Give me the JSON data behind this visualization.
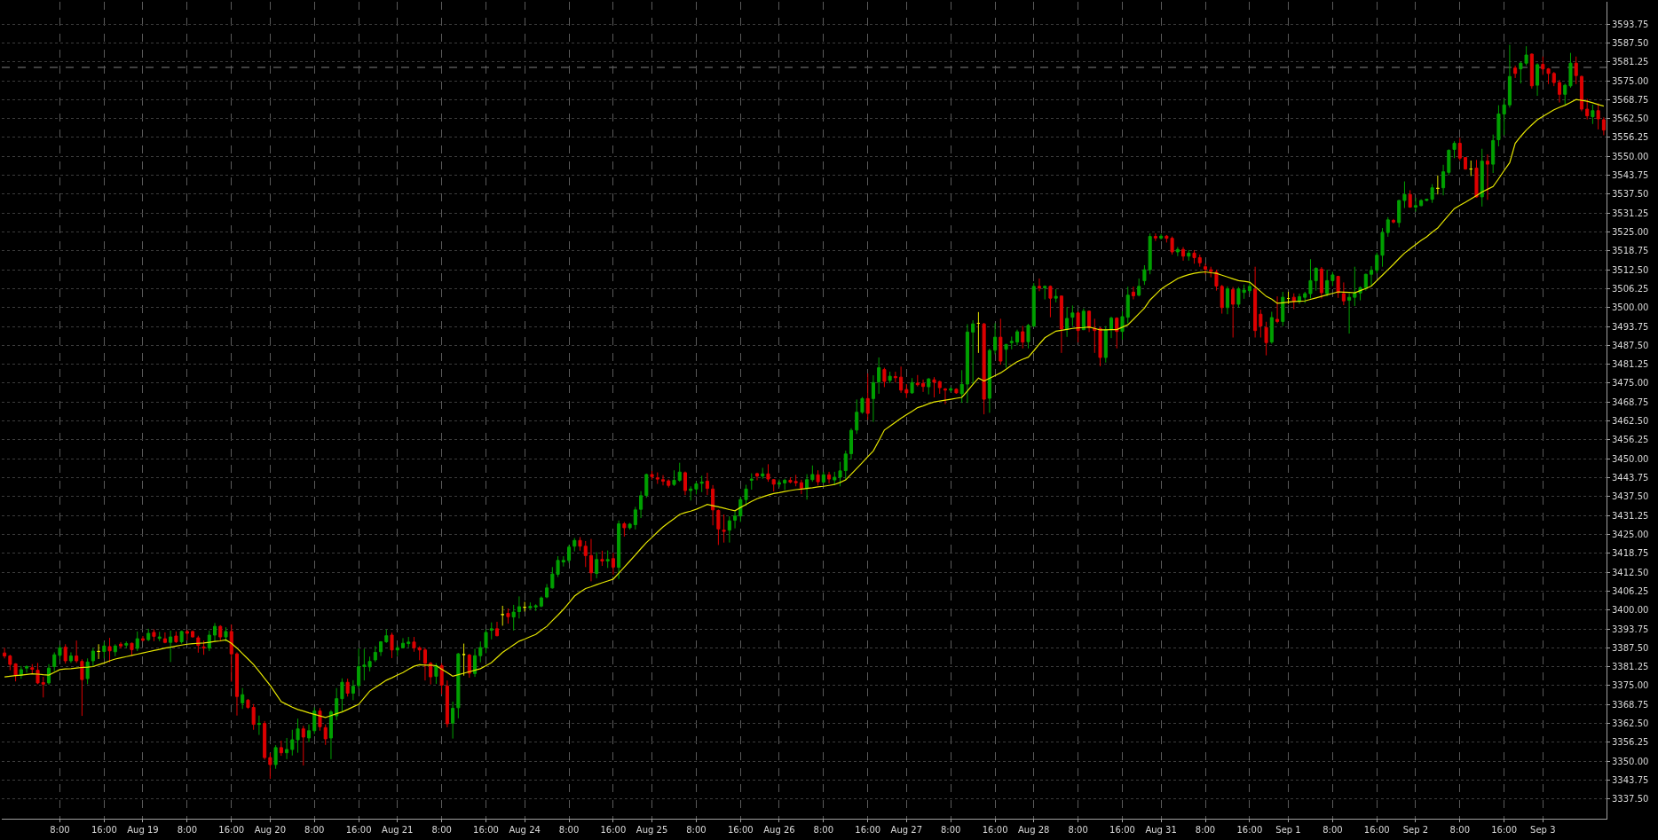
{
  "chart_data": {
    "type": "candlestick",
    "categories": [
      null,
      null,
      null,
      null,
      null,
      null,
      null,
      null,
      null,
      null,
      "8:00",
      null,
      null,
      null,
      null,
      null,
      null,
      null,
      "16:00",
      null,
      null,
      null,
      null,
      null,
      null,
      "Aug 19",
      null,
      null,
      null,
      null,
      null,
      null,
      null,
      "8:00",
      null,
      null,
      null,
      null,
      null,
      null,
      null,
      "16:00",
      null,
      null,
      null,
      null,
      null,
      null,
      "Aug 20",
      null,
      null,
      null,
      null,
      null,
      null,
      null,
      "8:00",
      null,
      null,
      null,
      null,
      null,
      null,
      null,
      "16:00",
      null,
      null,
      null,
      null,
      null,
      null,
      "Aug 21",
      null,
      null,
      null,
      null,
      null,
      null,
      null,
      "8:00",
      null,
      null,
      null,
      null,
      null,
      null,
      null,
      "16:00",
      null,
      null,
      null,
      null,
      null,
      null,
      "Aug 24",
      null,
      null,
      null,
      null,
      null,
      null,
      null,
      "8:00",
      null,
      null,
      null,
      null,
      null,
      null,
      null,
      "16:00",
      null,
      null,
      null,
      null,
      null,
      null,
      "Aug 25",
      null,
      null,
      null,
      null,
      null,
      null,
      null,
      "8:00",
      null,
      null,
      null,
      null,
      null,
      null,
      null,
      "16:00",
      null,
      null,
      null,
      null,
      null,
      null,
      "Aug 26",
      null,
      null,
      null,
      null,
      null,
      null,
      null,
      "8:00",
      null,
      null,
      null,
      null,
      null,
      null,
      null,
      "16:00",
      null,
      null,
      null,
      null,
      null,
      null,
      "Aug 27",
      null,
      null,
      null,
      null,
      null,
      null,
      null,
      "8:00",
      null,
      null,
      null,
      null,
      null,
      null,
      null,
      "16:00",
      null,
      null,
      null,
      null,
      null,
      null,
      "Aug 28",
      null,
      null,
      null,
      null,
      null,
      null,
      null,
      "8:00",
      null,
      null,
      null,
      null,
      null,
      null,
      null,
      "16:00",
      null,
      null,
      null,
      null,
      null,
      null,
      "Aug 31",
      null,
      null,
      null,
      null,
      null,
      null,
      null,
      "8:00",
      null,
      null,
      null,
      null,
      null,
      null,
      null,
      "16:00",
      null,
      null,
      null,
      null,
      null,
      null,
      "Sep 1",
      null,
      null,
      null,
      null,
      null,
      null,
      null,
      "8:00",
      null,
      null,
      null,
      null,
      null,
      null,
      null,
      "16:00",
      null,
      null,
      null,
      null,
      null,
      null,
      "Sep 2",
      null,
      null,
      null,
      null,
      null,
      null,
      null,
      "8:00",
      null,
      null,
      null,
      null,
      null,
      null,
      null,
      "16:00",
      null,
      null,
      null,
      null,
      null,
      null,
      "Sep 3",
      null,
      null,
      null,
      null,
      null,
      null,
      null,
      null,
      null,
      null,
      null
    ],
    "ohlc": [
      [
        3385.8,
        3387.5,
        3384.0,
        3384.8
      ],
      [
        3384.8,
        3385.2,
        3380.1,
        3382.0
      ],
      [
        3382.2,
        3382.4,
        3376.4,
        3378.4
      ],
      [
        3378.4,
        3381.5,
        3377.3,
        3380.3
      ],
      [
        3380.8,
        3381.7,
        3379.3,
        3381.3
      ],
      [
        3380.9,
        3382.1,
        3378.9,
        3380.4
      ],
      [
        3380.1,
        3382.5,
        3375.5,
        3375.9
      ],
      [
        3376.0,
        3377.9,
        3371.1,
        3375.5
      ],
      [
        3375.9,
        3382.1,
        3375.3,
        3380.8
      ],
      [
        3381.3,
        3386.0,
        3379.8,
        3385.2
      ],
      [
        3385.0,
        3388.4,
        3383.7,
        3387.5
      ],
      [
        3387.7,
        3388.7,
        3382.3,
        3383.2
      ],
      [
        3383.2,
        3386.0,
        3382.5,
        3384.8
      ],
      [
        3384.8,
        3389.9,
        3382.5,
        3383.2
      ],
      [
        3383.0,
        3383.7,
        3365.0,
        3377.0
      ],
      [
        3377.3,
        3384.0,
        3375.5,
        3382.8
      ],
      [
        3383.2,
        3387.5,
        3381.4,
        3386.4
      ],
      [
        3386.3,
        3388.7,
        3383.8,
        3386.3
      ],
      [
        3386.3,
        3389.4,
        3384.0,
        3388.1
      ],
      [
        3387.9,
        3390.8,
        3382.7,
        3386.5
      ],
      [
        3386.2,
        3388.7,
        3384.7,
        3388.1
      ],
      [
        3388.7,
        3389.4,
        3387.3,
        3388.1
      ],
      [
        3388.4,
        3389.6,
        3387.4,
        3388.9
      ],
      [
        3389.0,
        3389.2,
        3384.8,
        3386.9
      ],
      [
        3387.3,
        3392.9,
        3386.4,
        3390.5
      ],
      [
        3390.5,
        3391.4,
        3389.6,
        3390.0
      ],
      [
        3390.2,
        3393.8,
        3389.7,
        3392.3
      ],
      [
        3392.6,
        3393.6,
        3389.7,
        3391.3
      ],
      [
        3390.6,
        3392.8,
        3389.7,
        3391.1
      ],
      [
        3390.5,
        3392.6,
        3389.0,
        3389.3
      ],
      [
        3389.3,
        3393.2,
        3382.8,
        3391.1
      ],
      [
        3391.4,
        3392.9,
        3389.1,
        3389.5
      ],
      [
        3389.5,
        3393.2,
        3388.9,
        3392.9
      ],
      [
        3392.9,
        3393.4,
        3390.0,
        3392.3
      ],
      [
        3392.9,
        3393.2,
        3390.9,
        3391.1
      ],
      [
        3390.8,
        3391.5,
        3385.9,
        3388.3
      ],
      [
        3387.8,
        3389.9,
        3385.2,
        3387.4
      ],
      [
        3387.4,
        3393.2,
        3386.4,
        3391.7
      ],
      [
        3391.7,
        3395.7,
        3389.4,
        3394.6
      ],
      [
        3394.6,
        3395.0,
        3389.6,
        3391.1
      ],
      [
        3391.1,
        3394.3,
        3389.6,
        3392.9
      ],
      [
        3392.9,
        3395.2,
        3376.3,
        3385.5
      ],
      [
        3385.5,
        3386.0,
        3365.1,
        3371.4
      ],
      [
        3369.3,
        3374.2,
        3367.3,
        3372.0
      ],
      [
        3370.2,
        3370.6,
        3367.3,
        3367.8
      ],
      [
        3367.8,
        3368.9,
        3360.4,
        3362.2
      ],
      [
        3362.2,
        3365.1,
        3358.7,
        3362.5
      ],
      [
        3362.5,
        3363.3,
        3350.5,
        3351.2
      ],
      [
        3351.2,
        3352.7,
        3344.2,
        3348.9
      ],
      [
        3348.9,
        3355.3,
        3347.5,
        3354.5
      ],
      [
        3354.5,
        3356.8,
        3351.8,
        3352.8
      ],
      [
        3352.8,
        3357.7,
        3350.7,
        3353.9
      ],
      [
        3353.9,
        3360.4,
        3351.9,
        3357.1
      ],
      [
        3357.1,
        3364.1,
        3352.8,
        3360.7
      ],
      [
        3360.7,
        3361.7,
        3348.6,
        3358.0
      ],
      [
        3357.7,
        3362.2,
        3356.3,
        3360.1
      ],
      [
        3360.1,
        3367.8,
        3359.0,
        3366.6
      ],
      [
        3366.6,
        3367.6,
        3360.1,
        3361.4
      ],
      [
        3361.1,
        3362.2,
        3355.4,
        3357.4
      ],
      [
        3357.7,
        3366.9,
        3350.7,
        3366.3
      ],
      [
        3365.0,
        3374.2,
        3363.6,
        3370.7
      ],
      [
        3370.7,
        3377.4,
        3366.3,
        3376.1
      ],
      [
        3376.1,
        3377.3,
        3371.4,
        3372.5
      ],
      [
        3372.5,
        3376.8,
        3370.2,
        3374.8
      ],
      [
        3375.0,
        3387.3,
        3374.0,
        3381.3
      ],
      [
        3381.3,
        3387.2,
        3376.7,
        3381.8
      ],
      [
        3381.2,
        3384.6,
        3379.7,
        3383.0
      ],
      [
        3383.5,
        3388.1,
        3382.8,
        3386.0
      ],
      [
        3386.2,
        3389.7,
        3384.8,
        3389.5
      ],
      [
        3389.5,
        3393.6,
        3389.1,
        3391.5
      ],
      [
        3391.7,
        3392.5,
        3384.1,
        3386.8
      ],
      [
        3386.8,
        3388.3,
        3384.8,
        3387.5
      ],
      [
        3387.5,
        3390.7,
        3387.3,
        3389.0
      ],
      [
        3388.9,
        3391.1,
        3387.7,
        3389.4
      ],
      [
        3389.4,
        3391.1,
        3386.2,
        3387.5
      ],
      [
        3387.5,
        3388.0,
        3383.4,
        3386.8
      ],
      [
        3386.8,
        3387.5,
        3376.7,
        3382.4
      ],
      [
        3382.4,
        3382.8,
        3375.4,
        3377.9
      ],
      [
        3378.1,
        3382.4,
        3375.6,
        3381.6
      ],
      [
        3381.6,
        3382.4,
        3372.2,
        3375.2
      ],
      [
        3374.9,
        3376.7,
        3361.2,
        3362.4
      ],
      [
        3362.6,
        3369.7,
        3357.5,
        3367.5
      ],
      [
        3367.7,
        3385.8,
        3364.2,
        3385.5
      ],
      [
        3385.3,
        3388.9,
        3378.3,
        3385.3
      ],
      [
        3385.1,
        3385.5,
        3377.6,
        3379.1
      ],
      [
        3379.0,
        3387.2,
        3377.9,
        3384.9
      ],
      [
        3384.9,
        3389.6,
        3382.7,
        3387.6
      ],
      [
        3387.6,
        3393.6,
        3385.7,
        3392.6
      ],
      [
        3393.3,
        3395.9,
        3390.3,
        3393.8
      ],
      [
        3393.8,
        3396.1,
        3391.3,
        3391.5
      ],
      [
        3398.5,
        3401.4,
        3394.8,
        3398.5
      ],
      [
        3398.9,
        3400.5,
        3395.5,
        3397.8
      ],
      [
        3397.7,
        3401.7,
        3393.2,
        3399.3
      ],
      [
        3399.5,
        3404.5,
        3397.2,
        3401.1
      ],
      [
        3400.9,
        3402.7,
        3399.5,
        3400.9
      ],
      [
        3400.7,
        3402.5,
        3400.3,
        3401.2
      ],
      [
        3401.0,
        3401.9,
        3399.7,
        3401.4
      ],
      [
        3401.3,
        3404.5,
        3400.9,
        3404.0
      ],
      [
        3404.3,
        3408.6,
        3403.9,
        3407.3
      ],
      [
        3407.3,
        3414.2,
        3407.1,
        3411.9
      ],
      [
        3411.8,
        3417.8,
        3410.9,
        3416.4
      ],
      [
        3415.9,
        3417.8,
        3414.4,
        3416.4
      ],
      [
        3416.4,
        3421.5,
        3415.6,
        3420.8
      ],
      [
        3421.1,
        3423.8,
        3419.4,
        3423.0
      ],
      [
        3423.0,
        3424.1,
        3419.6,
        3421.1
      ],
      [
        3421.1,
        3422.8,
        3414.2,
        3418.0
      ],
      [
        3418.0,
        3423.5,
        3409.5,
        3412.3
      ],
      [
        3412.1,
        3419.1,
        3410.5,
        3416.7
      ],
      [
        3416.7,
        3419.6,
        3414.6,
        3416.2
      ],
      [
        3416.2,
        3419.7,
        3413.9,
        3416.7
      ],
      [
        3417.0,
        3418.9,
        3411.7,
        3414.2
      ],
      [
        3414.1,
        3429.6,
        3410.3,
        3428.5
      ],
      [
        3428.5,
        3429.1,
        3424.3,
        3427.2
      ],
      [
        3427.2,
        3428.8,
        3426.6,
        3428.4
      ],
      [
        3428.2,
        3434.1,
        3426.6,
        3433.1
      ],
      [
        3433.3,
        3439.3,
        3430.4,
        3437.8
      ],
      [
        3437.9,
        3445.1,
        3437.1,
        3444.8
      ],
      [
        3444.8,
        3446.0,
        3443.1,
        3444.1
      ],
      [
        3443.7,
        3445.5,
        3441.7,
        3443.3
      ],
      [
        3443.1,
        3444.6,
        3441.2,
        3442.6
      ],
      [
        3442.7,
        3443.2,
        3440.5,
        3441.2
      ],
      [
        3441.5,
        3446.2,
        3441.0,
        3442.9
      ],
      [
        3442.9,
        3448.7,
        3442.4,
        3445.6
      ],
      [
        3445.4,
        3445.8,
        3438.0,
        3439.5
      ],
      [
        3439.5,
        3440.9,
        3436.2,
        3440.0
      ],
      [
        3440.0,
        3442.5,
        3438.2,
        3441.7
      ],
      [
        3441.9,
        3444.4,
        3439.0,
        3442.3
      ],
      [
        3442.6,
        3445.4,
        3438.0,
        3440.2
      ],
      [
        3440.0,
        3441.3,
        3428.0,
        3433.1
      ],
      [
        3432.9,
        3433.2,
        3421.5,
        3426.8
      ],
      [
        3426.4,
        3431.6,
        3422.3,
        3426.0
      ],
      [
        3426.4,
        3431.0,
        3422.3,
        3429.5
      ],
      [
        3429.7,
        3432.6,
        3427.0,
        3431.1
      ],
      [
        3431.1,
        3437.5,
        3429.1,
        3436.5
      ],
      [
        3436.5,
        3441.4,
        3434.4,
        3440.0
      ],
      [
        3442.9,
        3445.2,
        3439.8,
        3443.3
      ],
      [
        3445.1,
        3445.4,
        3442.9,
        3444.3
      ],
      [
        3444.3,
        3447.0,
        3443.4,
        3445.0
      ],
      [
        3445.0,
        3448.2,
        3442.4,
        3443.3
      ],
      [
        3443.1,
        3443.3,
        3439.2,
        3441.6
      ],
      [
        3441.6,
        3443.2,
        3440.6,
        3442.1
      ],
      [
        3442.0,
        3443.4,
        3439.7,
        3442.9
      ],
      [
        3442.9,
        3443.9,
        3441.9,
        3442.3
      ],
      [
        3442.5,
        3444.7,
        3440.9,
        3442.1
      ],
      [
        3442.1,
        3443.1,
        3438.3,
        3440.3
      ],
      [
        3440.2,
        3444.9,
        3436.5,
        3443.1
      ],
      [
        3443.1,
        3447.8,
        3442.4,
        3444.8
      ],
      [
        3444.7,
        3446.2,
        3441.2,
        3442.4
      ],
      [
        3442.3,
        3445.7,
        3441.9,
        3444.7
      ],
      [
        3444.7,
        3445.7,
        3441.9,
        3443.3
      ],
      [
        3443.0,
        3445.7,
        3441.3,
        3443.9
      ],
      [
        3443.9,
        3449.0,
        3440.9,
        3446.0
      ],
      [
        3446.1,
        3452.7,
        3443.1,
        3451.6
      ],
      [
        3451.7,
        3460.1,
        3449.8,
        3459.4
      ],
      [
        3459.5,
        3469.6,
        3458.2,
        3465.4
      ],
      [
        3465.4,
        3470.4,
        3464.9,
        3469.9
      ],
      [
        3469.9,
        3478.2,
        3462.9,
        3465.0
      ],
      [
        3469.9,
        3477.6,
        3462.2,
        3475.2
      ],
      [
        3475.4,
        3483.5,
        3471.5,
        3480.1
      ],
      [
        3479.5,
        3480.1,
        3473.7,
        3475.6
      ],
      [
        3475.9,
        3478.8,
        3475.0,
        3477.3
      ],
      [
        3477.2,
        3478.8,
        3475.2,
        3476.8
      ],
      [
        3477.0,
        3480.5,
        3471.8,
        3472.7
      ],
      [
        3472.9,
        3474.7,
        3470.1,
        3471.8
      ],
      [
        3471.8,
        3476.7,
        3471.5,
        3475.2
      ],
      [
        3475.0,
        3477.7,
        3473.9,
        3474.5
      ],
      [
        3474.9,
        3476.2,
        3472.1,
        3473.9
      ],
      [
        3473.8,
        3476.7,
        3471.3,
        3476.4
      ],
      [
        3476.1,
        3477.0,
        3470.3,
        3475.3
      ],
      [
        3475.5,
        3475.8,
        3471.5,
        3473.5
      ],
      [
        3473.1,
        3473.4,
        3468.1,
        3472.7
      ],
      [
        3472.7,
        3473.7,
        3472.0,
        3473.1
      ],
      [
        3473.0,
        3473.3,
        3471.5,
        3471.8
      ],
      [
        3471.5,
        3479.3,
        3468.5,
        3474.6
      ],
      [
        3474.7,
        3494.5,
        3468.5,
        3491.9
      ],
      [
        3491.9,
        3495.8,
        3474.7,
        3494.6
      ],
      [
        3494.8,
        3498.5,
        3485.0,
        3494.8
      ],
      [
        3494.6,
        3494.9,
        3464.7,
        3469.7
      ],
      [
        3470.0,
        3486.4,
        3465.2,
        3485.8
      ],
      [
        3485.9,
        3494.8,
        3484.5,
        3490.2
      ],
      [
        3490.2,
        3496.3,
        3481.1,
        3482.3
      ],
      [
        3486.2,
        3488.0,
        3480.1,
        3487.8
      ],
      [
        3488.4,
        3490.4,
        3486.2,
        3488.8
      ],
      [
        3488.6,
        3492.7,
        3487.5,
        3492.0
      ],
      [
        3492.0,
        3493.9,
        3486.5,
        3488.6
      ],
      [
        3488.7,
        3494.6,
        3486.5,
        3494.1
      ],
      [
        3493.9,
        3508.1,
        3493.5,
        3507.0
      ],
      [
        3507.0,
        3509.6,
        3505.4,
        3506.5
      ],
      [
        3506.5,
        3507.3,
        3502.7,
        3507.0
      ],
      [
        3507.0,
        3507.3,
        3496.8,
        3503.1
      ],
      [
        3503.1,
        3506.1,
        3501.7,
        3503.7
      ],
      [
        3503.8,
        3504.0,
        3485.0,
        3492.9
      ],
      [
        3492.9,
        3500.2,
        3490.3,
        3496.4
      ],
      [
        3496.8,
        3500.7,
        3493.9,
        3498.2
      ],
      [
        3498.2,
        3498.8,
        3488.5,
        3492.4
      ],
      [
        3492.7,
        3499.7,
        3492.5,
        3498.8
      ],
      [
        3498.8,
        3499.0,
        3491.9,
        3493.4
      ],
      [
        3493.1,
        3496.3,
        3485.0,
        3492.4
      ],
      [
        3493.1,
        3493.5,
        3480.6,
        3483.5
      ],
      [
        3483.5,
        3493.9,
        3481.8,
        3492.7
      ],
      [
        3492.7,
        3497.0,
        3489.9,
        3496.5
      ],
      [
        3496.5,
        3496.8,
        3486.5,
        3492.1
      ],
      [
        3492.1,
        3498.8,
        3489.4,
        3497.0
      ],
      [
        3496.8,
        3506.9,
        3494.8,
        3504.1
      ],
      [
        3505.1,
        3506.9,
        3502.7,
        3503.9
      ],
      [
        3504.1,
        3509.6,
        3503.7,
        3507.0
      ],
      [
        3508.9,
        3514.0,
        3507.5,
        3512.5
      ],
      [
        3512.5,
        3524.5,
        3511.0,
        3523.5
      ],
      [
        3523.5,
        3524.5,
        3522.0,
        3523.0
      ],
      [
        3523.0,
        3524.3,
        3522.5,
        3523.6
      ],
      [
        3523.6,
        3524.0,
        3521.5,
        3522.9
      ],
      [
        3522.9,
        3523.5,
        3517.5,
        3518.4
      ],
      [
        3518.4,
        3520.0,
        3517.0,
        3519.2
      ],
      [
        3519.2,
        3520.0,
        3515.5,
        3517.0
      ],
      [
        3517.0,
        3519.0,
        3515.5,
        3518.0
      ],
      [
        3518.0,
        3519.0,
        3514.5,
        3516.5
      ],
      [
        3516.5,
        3517.5,
        3513.5,
        3514.8
      ],
      [
        3513.5,
        3514.5,
        3511.0,
        3512.7
      ],
      [
        3512.5,
        3513.5,
        3510.0,
        3511.9
      ],
      [
        3511.7,
        3512.5,
        3505.6,
        3507.1
      ],
      [
        3507.0,
        3507.5,
        3498.0,
        3500.0
      ],
      [
        3500.0,
        3507.0,
        3497.8,
        3506.2
      ],
      [
        3505.9,
        3506.8,
        3490.1,
        3501.1
      ],
      [
        3501.1,
        3506.8,
        3500.1,
        3506.2
      ],
      [
        3505.0,
        3507.6,
        3502.9,
        3505.8
      ],
      [
        3505.6,
        3508.6,
        3504.7,
        3507.0
      ],
      [
        3506.0,
        3513.5,
        3490.1,
        3492.4
      ],
      [
        3497.8,
        3499.3,
        3490.1,
        3493.9
      ],
      [
        3493.4,
        3495.3,
        3484.2,
        3488.4
      ],
      [
        3488.6,
        3498.6,
        3488.0,
        3496.7
      ],
      [
        3496.1,
        3503.7,
        3494.8,
        3495.4
      ],
      [
        3495.4,
        3505.2,
        3493.9,
        3503.4
      ],
      [
        3503.0,
        3505.2,
        3501.2,
        3503.0
      ],
      [
        3503.4,
        3504.7,
        3499.5,
        3502.0
      ],
      [
        3502.0,
        3504.6,
        3501.2,
        3503.6
      ],
      [
        3503.4,
        3505.2,
        3501.5,
        3504.6
      ],
      [
        3504.6,
        3516.0,
        3503.0,
        3508.9
      ],
      [
        3508.9,
        3513.3,
        3505.6,
        3513.0
      ],
      [
        3512.7,
        3513.4,
        3503.0,
        3504.9
      ],
      [
        3504.6,
        3512.5,
        3503.7,
        3508.9
      ],
      [
        3508.9,
        3511.8,
        3507.1,
        3510.8
      ],
      [
        3510.3,
        3510.5,
        3503.2,
        3504.9
      ],
      [
        3504.6,
        3508.3,
        3500.8,
        3502.2
      ],
      [
        3502.4,
        3504.7,
        3491.4,
        3503.4
      ],
      [
        3503.4,
        3513.5,
        3500.5,
        3504.8
      ],
      [
        3504.8,
        3507.0,
        3502.4,
        3506.6
      ],
      [
        3506.6,
        3511.2,
        3505.6,
        3511.0
      ],
      [
        3511.0,
        3513.7,
        3507.1,
        3512.3
      ],
      [
        3512.3,
        3518.2,
        3511.3,
        3517.3
      ],
      [
        3517.3,
        3526.3,
        3513.5,
        3524.8
      ],
      [
        3524.8,
        3529.9,
        3523.4,
        3529.0
      ],
      [
        3528.8,
        3529.3,
        3527.8,
        3528.3
      ],
      [
        3528.1,
        3535.6,
        3526.5,
        3535.4
      ],
      [
        3535.4,
        3541.7,
        3532.9,
        3537.4
      ],
      [
        3537.4,
        3538.8,
        3533.0,
        3533.2
      ],
      [
        3533.2,
        3536.3,
        3531.7,
        3533.7
      ],
      [
        3533.7,
        3535.8,
        3533.5,
        3535.4
      ],
      [
        3535.4,
        3536.0,
        3535.2,
        3535.8
      ],
      [
        3535.8,
        3540.8,
        3534.6,
        3539.6
      ],
      [
        3539.4,
        3543.7,
        3537.4,
        3539.4
      ],
      [
        3539.6,
        3547.2,
        3537.1,
        3544.9
      ],
      [
        3544.7,
        3552.3,
        3543.7,
        3552.0
      ],
      [
        3552.3,
        3555.0,
        3549.4,
        3554.3
      ],
      [
        3554.3,
        3556.1,
        3548.6,
        3549.4
      ],
      [
        3549.6,
        3549.8,
        3545.6,
        3545.8
      ],
      [
        3545.8,
        3548.6,
        3543.5,
        3545.8
      ],
      [
        3546.1,
        3548.8,
        3536.4,
        3536.6
      ],
      [
        3536.6,
        3552.5,
        3533.4,
        3548.4
      ],
      [
        3548.4,
        3550.6,
        3535.6,
        3547.4
      ],
      [
        3547.4,
        3557.2,
        3544.5,
        3555.2
      ],
      [
        3555.5,
        3566.9,
        3553.3,
        3564.0
      ],
      [
        3564.0,
        3569.0,
        3557.0,
        3567.0
      ],
      [
        3567.0,
        3586.9,
        3566.1,
        3576.4
      ],
      [
        3579.2,
        3580.0,
        3575.9,
        3577.4
      ],
      [
        3578.9,
        3581.3,
        3574.1,
        3580.8
      ],
      [
        3580.8,
        3586.4,
        3580.0,
        3583.5
      ],
      [
        3583.8,
        3584.0,
        3572.4,
        3573.3
      ],
      [
        3573.5,
        3580.8,
        3570.0,
        3580.3
      ],
      [
        3580.4,
        3583.0,
        3576.9,
        3578.9
      ],
      [
        3578.9,
        3579.2,
        3573.9,
        3577.4
      ],
      [
        3577.4,
        3577.9,
        3573.2,
        3574.4
      ],
      [
        3574.4,
        3575.3,
        3567.8,
        3570.5
      ],
      [
        3570.5,
        3574.0,
        3567.1,
        3573.5
      ],
      [
        3573.3,
        3584.2,
        3572.7,
        3580.8
      ],
      [
        3580.8,
        3583.0,
        3573.9,
        3576.7
      ],
      [
        3576.4,
        3576.7,
        3564.9,
        3565.6
      ],
      [
        3565.6,
        3569.0,
        3562.2,
        3563.4
      ],
      [
        3563.1,
        3567.1,
        3560.7,
        3565.1
      ],
      [
        3565.1,
        3567.5,
        3558.9,
        3562.4
      ],
      [
        3562.1,
        3562.9,
        3557.0,
        3558.7
      ]
    ],
    "colors": [
      "#dd0000",
      "#dd0000",
      "#dd0000",
      "#00a000",
      "#00a000",
      "#dd0000",
      "#dd0000",
      "#dd0000",
      "#00a000",
      "#00a000",
      "#00a000",
      "#dd0000",
      "#00a000",
      "#dd0000",
      "#dd0000",
      "#00a000",
      "#00a000",
      "#e6e600",
      "#00a000",
      "#dd0000",
      "#00a000",
      "#dd0000",
      "#00a000",
      "#dd0000",
      "#00a000",
      "#dd0000",
      "#00a000",
      "#dd0000",
      "#00a000",
      "#dd0000",
      "#00a000",
      "#dd0000",
      "#00a000",
      "#dd0000",
      "#dd0000",
      "#dd0000",
      "#dd0000",
      "#00a000",
      "#00a000",
      "#dd0000",
      "#00a000",
      "#dd0000",
      "#dd0000",
      "#00a000",
      "#dd0000",
      "#dd0000",
      "#00a000",
      "#dd0000",
      "#dd0000",
      "#00a000",
      "#dd0000",
      "#00a000",
      "#00a000",
      "#00a000",
      "#dd0000",
      "#00a000",
      "#00a000",
      "#dd0000",
      "#dd0000",
      "#00a000",
      "#00a000",
      "#00a000",
      "#dd0000",
      "#00a000",
      "#00a000",
      "#00a000",
      "#00a000",
      "#00a000",
      "#00a000",
      "#00a000",
      "#dd0000",
      "#00a000",
      "#00a000",
      "#00a000",
      "#dd0000",
      "#dd0000",
      "#dd0000",
      "#dd0000",
      "#00a000",
      "#dd0000",
      "#dd0000",
      "#00a000",
      "#00a000",
      "#e6e600",
      "#dd0000",
      "#00a000",
      "#00a000",
      "#00a000",
      "#00a000",
      "#dd0000",
      "#e6e600",
      "#dd0000",
      "#00a000",
      "#00a000",
      "#e6e600",
      "#00a000",
      "#00a000",
      "#00a000",
      "#00a000",
      "#00a000",
      "#00a000",
      "#00a000",
      "#00a000",
      "#00a000",
      "#dd0000",
      "#dd0000",
      "#dd0000",
      "#00a000",
      "#dd0000",
      "#00a000",
      "#dd0000",
      "#00a000",
      "#dd0000",
      "#00a000",
      "#00a000",
      "#00a000",
      "#00a000",
      "#dd0000",
      "#dd0000",
      "#dd0000",
      "#dd0000",
      "#00a000",
      "#00a000",
      "#dd0000",
      "#00a000",
      "#00a000",
      "#00a000",
      "#dd0000",
      "#dd0000",
      "#dd0000",
      "#dd0000",
      "#00a000",
      "#00a000",
      "#00a000",
      "#00a000",
      "#00a000",
      "#dd0000",
      "#00a000",
      "#dd0000",
      "#dd0000",
      "#00a000",
      "#00a000",
      "#dd0000",
      "#dd0000",
      "#dd0000",
      "#00a000",
      "#00a000",
      "#dd0000",
      "#00a000",
      "#dd0000",
      "#00a000",
      "#00a000",
      "#00a000",
      "#00a000",
      "#00a000",
      "#00a000",
      "#dd0000",
      "#00a000",
      "#00a000",
      "#dd0000",
      "#00a000",
      "#dd0000",
      "#dd0000",
      "#dd0000",
      "#00a000",
      "#dd0000",
      "#dd0000",
      "#00a000",
      "#dd0000",
      "#dd0000",
      "#dd0000",
      "#00a000",
      "#dd0000",
      "#00a000",
      "#00a000",
      "#00a000",
      "#e6e600",
      "#dd0000",
      "#00a000",
      "#00a000",
      "#dd0000",
      "#00a000",
      "#00a000",
      "#00a000",
      "#dd0000",
      "#00a000",
      "#00a000",
      "#dd0000",
      "#00a000",
      "#dd0000",
      "#00a000",
      "#dd0000",
      "#00a000",
      "#00a000",
      "#dd0000",
      "#00a000",
      "#dd0000",
      "#dd0000",
      "#dd0000",
      "#00a000",
      "#00a000",
      "#dd0000",
      "#00a000",
      "#00a000",
      "#dd0000",
      "#00a000",
      "#00a000",
      "#00a000",
      "#dd0000",
      "#00a000",
      "#dd0000",
      "#dd0000",
      "#00a000",
      "#dd0000",
      "#00a000",
      "#dd0000",
      "#dd0000",
      "#dd0000",
      "#dd0000",
      "#dd0000",
      "#dd0000",
      "#00a000",
      "#dd0000",
      "#00a000",
      "#00a000",
      "#00a000",
      "#dd0000",
      "#dd0000",
      "#dd0000",
      "#00a000",
      "#dd0000",
      "#00a000",
      "#e6e600",
      "#dd0000",
      "#00a000",
      "#00a000",
      "#00a000",
      "#00a000",
      "#dd0000",
      "#00a000",
      "#00a000",
      "#dd0000",
      "#dd0000",
      "#00a000",
      "#00a000",
      "#00a000",
      "#00a000",
      "#00a000",
      "#00a000",
      "#00a000",
      "#00a000",
      "#dd0000",
      "#00a000",
      "#00a000",
      "#dd0000",
      "#00a000",
      "#00a000",
      "#00a000",
      "#00a000",
      "#e6e600",
      "#00a000",
      "#00a000",
      "#00a000",
      "#dd0000",
      "#dd0000",
      "#e6e600",
      "#dd0000",
      "#00a000",
      "#dd0000",
      "#00a000",
      "#00a000",
      "#00a000",
      "#00a000",
      "#dd0000",
      "#00a000",
      "#00a000",
      "#dd0000",
      "#00a000",
      "#dd0000",
      "#dd0000",
      "#dd0000",
      "#dd0000",
      "#00a000",
      "#00a000",
      "#dd0000",
      "#dd0000",
      "#dd0000",
      "#00a000",
      "#dd0000",
      "#dd0000"
    ],
    "series": [
      {
        "type": "line",
        "color": "#e6e600",
        "values": [
          3377.9,
          3378.1,
          3378.3,
          3378.5,
          3378.7,
          3378.9,
          3378.8,
          3378.6,
          3378.5,
          3379.4,
          3380.3,
          3380.5,
          3380.6,
          3380.8,
          3381.0,
          3381.1,
          3381.3,
          3381.9,
          3382.5,
          3383.2,
          3383.8,
          3384.2,
          3384.6,
          3385.0,
          3385.4,
          3385.8,
          3386.2,
          3386.6,
          3387.0,
          3387.4,
          3387.7,
          3388.1,
          3388.4,
          3388.7,
          3388.9,
          3389.0,
          3389.1,
          3389.3,
          3389.6,
          3389.8,
          3390.1,
          3389.0,
          3387.4,
          3385.6,
          3383.8,
          3382.0,
          3379.7,
          3377.4,
          3375.1,
          3372.4,
          3369.7,
          3368.8,
          3367.9,
          3367.1,
          3366.6,
          3366.0,
          3365.5,
          3365.0,
          3364.5,
          3365.1,
          3365.7,
          3366.3,
          3367.1,
          3368.0,
          3368.8,
          3371.0,
          3373.2,
          3374.4,
          3375.6,
          3376.8,
          3377.6,
          3378.5,
          3379.3,
          3380.4,
          3381.4,
          3381.9,
          3381.8,
          3381.8,
          3381.6,
          3380.4,
          3379.3,
          3378.1,
          3378.6,
          3379.1,
          3379.6,
          3380.1,
          3380.6,
          3381.6,
          3382.6,
          3384.3,
          3386.0,
          3387.2,
          3388.5,
          3389.7,
          3390.4,
          3391.2,
          3391.9,
          3393.3,
          3394.6,
          3396.5,
          3398.3,
          3400.2,
          3402.4,
          3404.6,
          3405.9,
          3407.1,
          3407.7,
          3408.4,
          3409.0,
          3409.6,
          3410.2,
          3412.2,
          3414.2,
          3416.2,
          3418.2,
          3420.3,
          3422.3,
          3424.0,
          3425.8,
          3427.5,
          3428.9,
          3430.2,
          3431.6,
          3432.2,
          3432.7,
          3433.3,
          3434.1,
          3434.9,
          3434.5,
          3434.1,
          3433.7,
          3433.2,
          3432.8,
          3433.9,
          3434.9,
          3435.9,
          3436.8,
          3437.4,
          3438.0,
          3438.5,
          3438.8,
          3439.2,
          3439.5,
          3439.8,
          3440.0,
          3440.2,
          3440.4,
          3440.7,
          3440.9,
          3441.2,
          3441.5,
          3442.2,
          3443.0,
          3444.9,
          3446.8,
          3448.7,
          3450.7,
          3452.6,
          3456.0,
          3459.5,
          3460.8,
          3462.1,
          3463.4,
          3464.6,
          3465.7,
          3466.9,
          3467.5,
          3468.2,
          3468.8,
          3469.1,
          3469.4,
          3469.7,
          3470.0,
          3470.3,
          3472.4,
          3474.6,
          3476.7,
          3475.7,
          3476.6,
          3477.5,
          3478.4,
          3479.6,
          3480.9,
          3482.1,
          3482.9,
          3483.6,
          3485.7,
          3487.9,
          3490.0,
          3491.1,
          3492.2,
          3492.5,
          3492.8,
          3493.1,
          3493.3,
          3493.4,
          3493.6,
          3493.1,
          3492.6,
          3492.6,
          3492.7,
          3492.7,
          3493.5,
          3494.3,
          3496.1,
          3498.0,
          3499.8,
          3502.5,
          3504.3,
          3506.1,
          3507.3,
          3508.4,
          3509.6,
          3510.3,
          3510.9,
          3511.3,
          3511.6,
          3511.8,
          3511.5,
          3511.3,
          3510.7,
          3510.1,
          3509.5,
          3508.9,
          3508.7,
          3508.4,
          3506.9,
          3505.3,
          3503.7,
          3502.8,
          3501.4,
          3501.6,
          3501.8,
          3502.0,
          3502.1,
          3502.2,
          3502.7,
          3503.2,
          3503.7,
          3504.2,
          3504.7,
          3505.2,
          3505.1,
          3505.0,
          3504.9,
          3505.6,
          3506.3,
          3507.1,
          3508.9,
          3510.7,
          3512.5,
          3514.3,
          3516.2,
          3518.0,
          3519.4,
          3520.8,
          3522.2,
          3523.4,
          3524.9,
          3526.3,
          3528.5,
          3530.6,
          3532.7,
          3533.8,
          3534.8,
          3535.9,
          3537.0,
          3538.2,
          3539.1,
          3540.0,
          3542.6,
          3545.3,
          3547.9,
          3554.3,
          3556.6,
          3558.7,
          3560.4,
          3562.1,
          3563.2,
          3564.3,
          3565.4,
          3566.2,
          3566.9,
          3567.8,
          3568.8,
          3568.5,
          3568.2,
          3567.7,
          3567.1,
          3566.6
        ]
      }
    ],
    "ylim": [
      3331.0,
      3601.1
    ],
    "yticks": [
      {
        "value": 3337.5,
        "label": "3337.50"
      },
      3343.75,
      {
        "value": 3350,
        "label": "3350.00"
      },
      3356.25,
      {
        "value": 3362.5,
        "label": "3362.50"
      },
      3368.75,
      {
        "value": 3375,
        "label": "3375.00"
      },
      3381.25,
      {
        "value": 3387.5,
        "label": "3387.50"
      },
      3393.75,
      {
        "value": 3400,
        "label": "3400.00"
      },
      3406.25,
      {
        "value": 3412.5,
        "label": "3412.50"
      },
      3418.75,
      {
        "value": 3425,
        "label": "3425.00"
      },
      3431.25,
      {
        "value": 3437.5,
        "label": "3437.50"
      },
      3443.75,
      {
        "value": 3450,
        "label": "3450.00"
      },
      3456.25,
      {
        "value": 3462.5,
        "label": "3462.50"
      },
      3468.75,
      {
        "value": 3475,
        "label": "3475.00"
      },
      3481.25,
      {
        "value": 3487.5,
        "label": "3487.50"
      },
      3493.75,
      {
        "value": 3500,
        "label": "3500.00"
      },
      3506.25,
      {
        "value": 3512.5,
        "label": "3512.50"
      },
      3518.75,
      {
        "value": 3525,
        "label": "3525.00"
      },
      3531.25,
      {
        "value": 3537.5,
        "label": "3537.50"
      },
      3543.75,
      {
        "value": 3550,
        "label": "3550.00"
      },
      3556.25,
      {
        "value": 3562.5,
        "label": "3562.50"
      },
      3568.75,
      {
        "value": 3575,
        "label": "3575.00"
      },
      3581.25,
      {
        "value": 3587.5,
        "label": "3587.50"
      },
      3593.75
    ],
    "grid": true,
    "ref_lines": [
      {
        "axis": "y",
        "value": 3579.4,
        "color": "#808080",
        "line_style": "dashed"
      }
    ]
  }
}
